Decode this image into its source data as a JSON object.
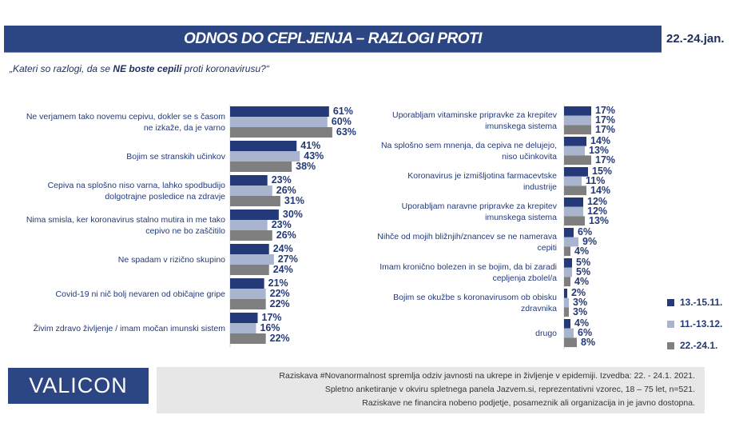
{
  "header": {
    "title": "ODNOS DO CEPLJENJA – RAZLOGI PROTI",
    "date": "22.-24.jan."
  },
  "question": {
    "before": "„Kateri so razlogi, da se ",
    "bold": "NE boste cepili",
    "after": " proti koronavirusu?“"
  },
  "colors": {
    "13.-15.11.": "#243a78",
    "11.-13.12.": "#a9b4cf",
    "22.-24.1.": "#7f7f7f"
  },
  "chart_data": [
    {
      "type": "bar",
      "orientation": "horizontal",
      "series_names": [
        "13.-15.11.",
        "11.-13.12.",
        "22.-24.1."
      ],
      "categories": [
        "Ne verjamem tako novemu cepivu, dokler se s časom ne izkaže, da je varno",
        "Bojim se stranskih učinkov",
        "Cepiva na splošno niso varna, lahko spodbudijo dolgotrajne posledice na zdravje",
        "Nima smisla, ker koronavirus stalno mutira in me tako cepivo ne bo zaščitilo",
        "Ne spadam v rizično skupino",
        "Covid-19 ni nič bolj nevaren od običajne gripe",
        "Živim zdravo življenje / imam močan imunski sistem"
      ],
      "values": [
        [
          61,
          60,
          63
        ],
        [
          41,
          43,
          38
        ],
        [
          23,
          26,
          31
        ],
        [
          30,
          23,
          26
        ],
        [
          24,
          27,
          24
        ],
        [
          21,
          22,
          22
        ],
        [
          17,
          16,
          22
        ]
      ],
      "unit": "%"
    },
    {
      "type": "bar",
      "orientation": "horizontal",
      "series_names": [
        "13.-15.11.",
        "11.-13.12.",
        "22.-24.1."
      ],
      "categories": [
        "Uporabljam vitaminske pripravke za krepitev imunskega sistema",
        "Na splošno sem mnenja, da cepiva ne delujejo, niso učinkovita",
        "Koronavirus je izmišljotina farmacevtske industrije",
        "Uporabljam naravne pripravke za krepitev imunskega sistema",
        "Nihče od mojih bližnjih/znancev se ne namerava cepiti",
        "Imam kronično bolezen in se bojim, da bi zaradi cepljenja zbolel/a",
        "Bojim se okužbe s koronavirusom ob obisku zdravnika",
        "drugo"
      ],
      "values": [
        [
          17,
          17,
          17
        ],
        [
          14,
          13,
          17
        ],
        [
          15,
          11,
          14
        ],
        [
          12,
          12,
          13
        ],
        [
          6,
          9,
          4
        ],
        [
          5,
          5,
          4
        ],
        [
          2,
          3,
          3
        ],
        [
          4,
          6,
          8
        ]
      ],
      "unit": "%"
    }
  ],
  "legend": [
    "13.-15.11.",
    "11.-13.12.",
    "22.-24.1."
  ],
  "logo": "VALICON",
  "footer": [
    "Raziskava #Novanormalnost spremlja odziv javnosti na ukrepe in življenje v epidemiji. Izvedba: 22. - 24.1. 2021.",
    "Spletno anketiranje v okviru spletnega panela Jazvem.si, reprezentativni vzorec, 18 – 75 let, n=521.",
    "Raziskave ne financira nobeno podjetje, posameznik ali organizacija in je javno dostopna."
  ]
}
